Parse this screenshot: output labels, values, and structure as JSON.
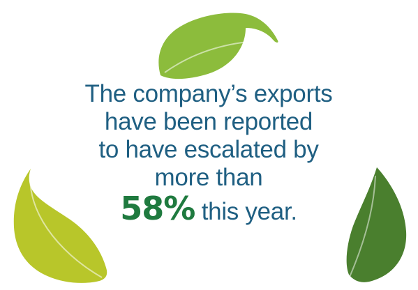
{
  "message": {
    "line1": "The company’s exports",
    "line2": "have been reported",
    "line3": "to have escalated by",
    "line4": "more than",
    "highlight_value": "58%",
    "tail": "this year."
  },
  "decor": {
    "leaves": [
      {
        "name": "top-leaf",
        "color": "#8cbc3c"
      },
      {
        "name": "left-leaf",
        "color": "#b8c62a"
      },
      {
        "name": "right-leaf",
        "color": "#4a7f2e"
      }
    ],
    "text_color": "#1f5f82",
    "highlight_color": "#1f7a3f"
  }
}
